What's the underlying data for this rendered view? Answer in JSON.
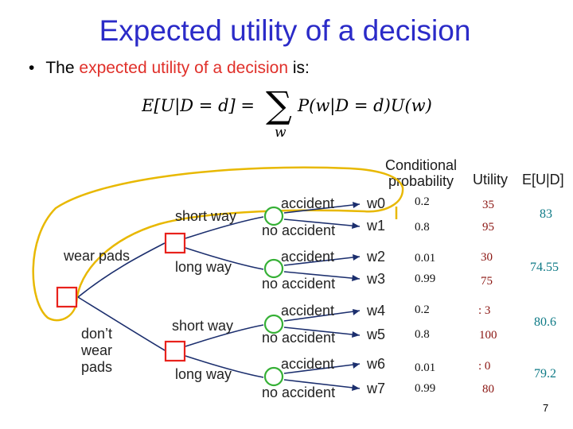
{
  "slide": {
    "title": "Expected utility of a decision",
    "bullet_pre": "The ",
    "bullet_highlight": "expected utility of a decision",
    "bullet_post": " is:",
    "page_number": "7"
  },
  "formula": {
    "lhs": "E[U|D = d] =",
    "sum_symbol": "∑",
    "sum_index": "w",
    "rhs": "P(w|D = d)U(w)"
  },
  "columns": {
    "prob_line1": "Conditional",
    "prob_line2": "probability",
    "utility": "Utility",
    "eu": "E[U|D]"
  },
  "tree": {
    "decision_wear": "wear pads",
    "decision_dont_1": "don’t",
    "decision_dont_2": "wear",
    "decision_dont_3": "pads",
    "way_short_1": "short way",
    "way_long_1": "long way",
    "way_short_2": "short way",
    "way_long_2": "long way",
    "outcome_accident": "accident",
    "outcome_no_accident": "no accident",
    "worlds": [
      "w0",
      "w1",
      "w2",
      "w3",
      "w4",
      "w5",
      "w6",
      "w7"
    ]
  },
  "rows": [
    {
      "prob": "0.2",
      "utility": "35"
    },
    {
      "prob": "0.8",
      "utility": "95"
    },
    {
      "prob": "0.01",
      "utility": "30"
    },
    {
      "prob": "0.99",
      "utility": "75"
    },
    {
      "prob": "0.2",
      "utility": ": 3"
    },
    {
      "prob": "0.8",
      "utility": "100"
    },
    {
      "prob": "0.01",
      "utility": ": 0"
    },
    {
      "prob": "0.99",
      "utility": "80"
    }
  ],
  "expected_utilities": [
    "83",
    "74.55",
    "80.6",
    "79.2"
  ],
  "colors": {
    "title": "#2b2bc8",
    "highlight": "#e0302a",
    "decision_node": "#e8221c",
    "chance_node": "#35b035",
    "edge": "#1c2f6e",
    "highlight_loop": "#e8b800",
    "eu_text": "#0e7a86"
  }
}
